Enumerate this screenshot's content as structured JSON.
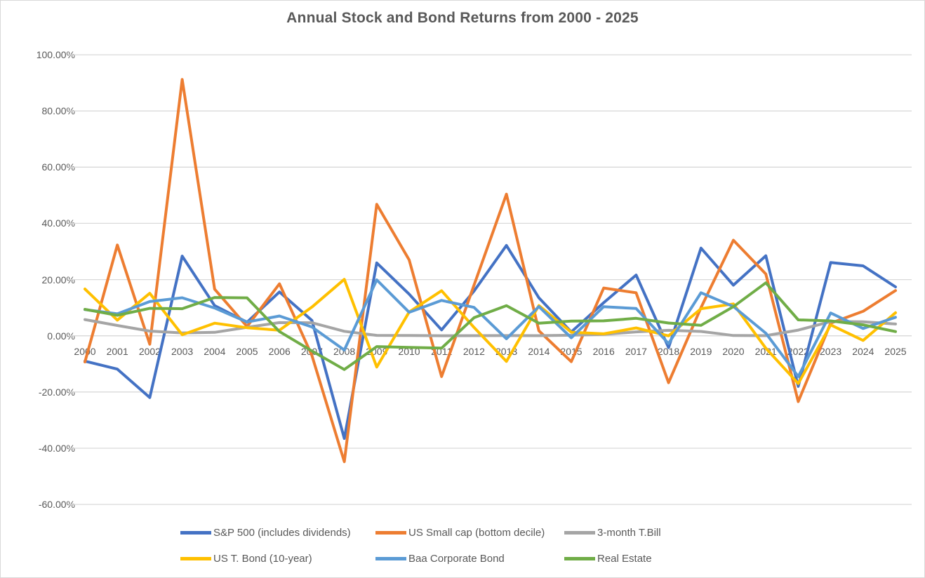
{
  "chart_data": {
    "type": "line",
    "title": "Annual Stock and Bond Returns from 2000 - 2025",
    "xlabel": "",
    "ylabel": "",
    "ylim": [
      -60,
      100
    ],
    "grid": true,
    "legend_position": "bottom",
    "gridline_color": "#D9D9D9",
    "text_color": "#595959",
    "categories": [
      "2000",
      "2001",
      "2002",
      "2003",
      "2004",
      "2005",
      "2006",
      "2007",
      "2008",
      "2009",
      "2010",
      "2011",
      "2012",
      "2013",
      "2014",
      "2015",
      "2016",
      "2017",
      "2018",
      "2019",
      "2020",
      "2021",
      "2022",
      "2023",
      "2024",
      "2025"
    ],
    "y_ticks": [
      {
        "value": 100,
        "label": "100.00%"
      },
      {
        "value": 80,
        "label": "80.00%"
      },
      {
        "value": 60,
        "label": "60.00%"
      },
      {
        "value": 40,
        "label": "40.00%"
      },
      {
        "value": 20,
        "label": "20.00%"
      },
      {
        "value": 0,
        "label": "0.00%"
      },
      {
        "value": -20,
        "label": "-20.00%"
      },
      {
        "value": -40,
        "label": "-40.00%"
      },
      {
        "value": -60,
        "label": "-60.00%"
      }
    ],
    "series": [
      {
        "name": "S&P 500 (includes dividends)",
        "slug": "sp500",
        "color": "#4472C4",
        "values": [
          -9.03,
          -11.85,
          -21.97,
          28.36,
          10.74,
          4.83,
          15.61,
          5.48,
          -36.55,
          25.94,
          14.82,
          2.1,
          15.89,
          32.15,
          13.52,
          1.38,
          11.77,
          21.61,
          -4.23,
          31.21,
          18.02,
          28.47,
          -18.01,
          26.06,
          24.88,
          17.4
        ]
      },
      {
        "name": "US Small cap (bottom decile)",
        "slug": "us-small-cap",
        "color": "#ED7D31",
        "values": [
          -9.3,
          32.3,
          -3.0,
          91.2,
          16.6,
          3.3,
          18.5,
          -7.0,
          -44.8,
          46.8,
          27.0,
          -14.5,
          18.0,
          50.4,
          1.8,
          -9.2,
          17.0,
          15.3,
          -16.7,
          10.0,
          34.0,
          22.0,
          -23.4,
          4.5,
          8.7,
          16.1
        ]
      },
      {
        "name": "3-month T.Bill",
        "slug": "tbill-3m",
        "color": "#A5A5A5",
        "values": [
          5.76,
          3.67,
          1.66,
          1.03,
          1.23,
          3.01,
          4.68,
          4.64,
          1.59,
          0.14,
          0.13,
          0.03,
          0.05,
          0.07,
          0.05,
          0.21,
          0.51,
          1.39,
          1.94,
          1.55,
          0.09,
          0.06,
          2.02,
          5.07,
          4.97,
          4.2
        ]
      },
      {
        "name": "US T. Bond (10-year)",
        "slug": "tbond-10y",
        "color": "#FFC000",
        "values": [
          16.66,
          5.57,
          15.12,
          0.38,
          4.49,
          2.87,
          1.96,
          10.21,
          20.1,
          -11.12,
          8.46,
          16.04,
          2.97,
          -9.1,
          10.75,
          1.28,
          0.69,
          2.8,
          -0.02,
          9.64,
          11.33,
          -4.42,
          -17.0,
          3.88,
          -1.64,
          8.2
        ]
      },
      {
        "name": "Baa Corporate Bond",
        "slug": "baa-corp-bond",
        "color": "#5B9BD5",
        "values": [
          9.33,
          7.82,
          12.18,
          13.53,
          9.89,
          4.92,
          7.05,
          3.15,
          -5.07,
          19.9,
          8.35,
          12.58,
          10.12,
          -1.06,
          10.38,
          -0.7,
          10.37,
          9.72,
          -2.76,
          15.33,
          10.41,
          0.93,
          -14.49,
          8.11,
          2.6,
          6.6
        ]
      },
      {
        "name": "Real Estate",
        "slug": "real-estate",
        "color": "#70AD47",
        "values": [
          9.4,
          7.28,
          9.77,
          9.64,
          13.64,
          13.51,
          1.51,
          -5.4,
          -12.0,
          -3.85,
          -4.11,
          -4.39,
          6.45,
          10.74,
          4.5,
          5.23,
          5.31,
          6.21,
          4.55,
          3.72,
          10.36,
          18.85,
          5.66,
          5.3,
          3.9,
          1.5
        ]
      }
    ]
  }
}
